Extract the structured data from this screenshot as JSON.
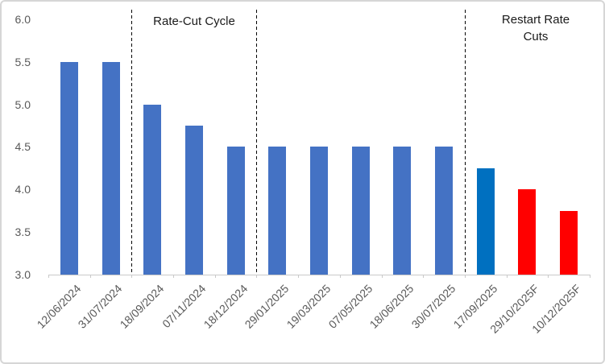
{
  "chart_data": {
    "type": "bar",
    "title": "",
    "xlabel": "",
    "ylabel": "",
    "categories": [
      "12/06/2024",
      "31/07/2024",
      "18/09/2024",
      "07/11/2024",
      "18/12/2024",
      "29/01/2025",
      "19/03/2025",
      "07/05/2025",
      "18/06/2025",
      "30/07/2025",
      "17/09/2025",
      "29/10/2025F",
      "10/12/2025F"
    ],
    "values": [
      5.5,
      5.5,
      5.0,
      4.75,
      4.5,
      4.5,
      4.5,
      4.5,
      4.5,
      4.5,
      4.25,
      4.0,
      3.75
    ],
    "bar_colors": [
      "#4472C4",
      "#4472C4",
      "#4472C4",
      "#4472C4",
      "#4472C4",
      "#4472C4",
      "#4472C4",
      "#4472C4",
      "#4472C4",
      "#4472C4",
      "#0070C0",
      "#FF0000",
      "#FF0000"
    ],
    "ylim": [
      3.0,
      6.0
    ],
    "ytick_labels": [
      "3.0",
      "3.5",
      "4.0",
      "4.5",
      "5.0",
      "5.5",
      "6.0"
    ],
    "ytick_step": 0.5,
    "grid": false,
    "legend": "none",
    "annotations": [
      {
        "text": "Rate-Cut Cycle"
      },
      {
        "text": "Restart Rate Cuts"
      }
    ],
    "dividers_after_category": [
      2,
      5,
      10
    ],
    "colors": {
      "bar_default": "#4472C4",
      "bar_highlight": "#0070C0",
      "bar_forecast": "#FF0000",
      "axis_text": "#595959",
      "annotation_text": "#1A1A1A",
      "axis_line": "#C9C9C9",
      "divider_line": "#000000",
      "frame_border": "#D6D6D6"
    }
  }
}
